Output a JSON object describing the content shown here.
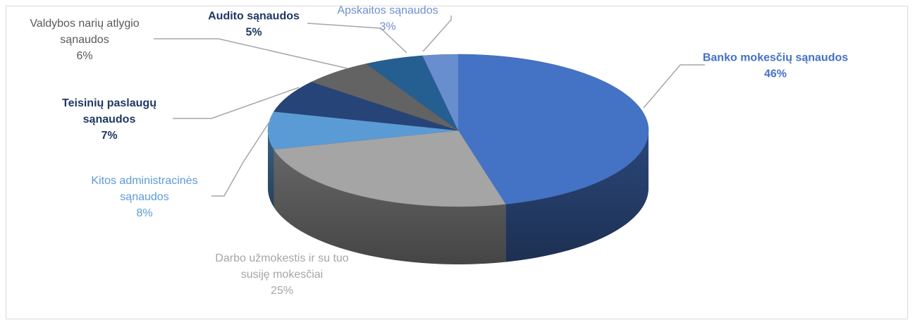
{
  "chart_data": {
    "type": "pie",
    "style": "3d",
    "title": "",
    "slices": [
      {
        "label_lines": [
          "Banko mokesčių sąnaudos"
        ],
        "pct_text": "46%",
        "value": 46,
        "color": "#4472c4",
        "label_color": "#4472c4",
        "bold": true
      },
      {
        "label_lines": [
          "Darbo užmokestis ir su tuo",
          "susiję mokesčiai"
        ],
        "pct_text": "25%",
        "value": 25,
        "color": "#a5a5a5",
        "label_color": "#a6a6a6",
        "bold": false
      },
      {
        "label_lines": [
          "Kitos administracinės",
          "sąnaudos"
        ],
        "pct_text": "8%",
        "value": 8,
        "color": "#5b9bd5",
        "label_color": "#5b9bd5",
        "bold": false
      },
      {
        "label_lines": [
          "Teisinių paslaugų",
          "sąnaudos"
        ],
        "pct_text": "7%",
        "value": 7,
        "color": "#264478",
        "label_color": "#1f3864",
        "bold": true
      },
      {
        "label_lines": [
          "Valdybos narių atlygio",
          "sąnaudos"
        ],
        "pct_text": "6%",
        "value": 6,
        "color": "#636363",
        "label_color": "#595959",
        "bold": false
      },
      {
        "label_lines": [
          "Audito sąnaudos"
        ],
        "pct_text": "5%",
        "value": 5,
        "color": "#255e91",
        "label_color": "#1f3864",
        "bold": true
      },
      {
        "label_lines": [
          "Apskaitos sąnaudos"
        ],
        "pct_text": "3%",
        "value": 3,
        "color": "#698ed0",
        "label_color": "#6f8fd0",
        "bold": false
      }
    ],
    "legend": "none",
    "leader_line_color": "#a6a6a6"
  }
}
